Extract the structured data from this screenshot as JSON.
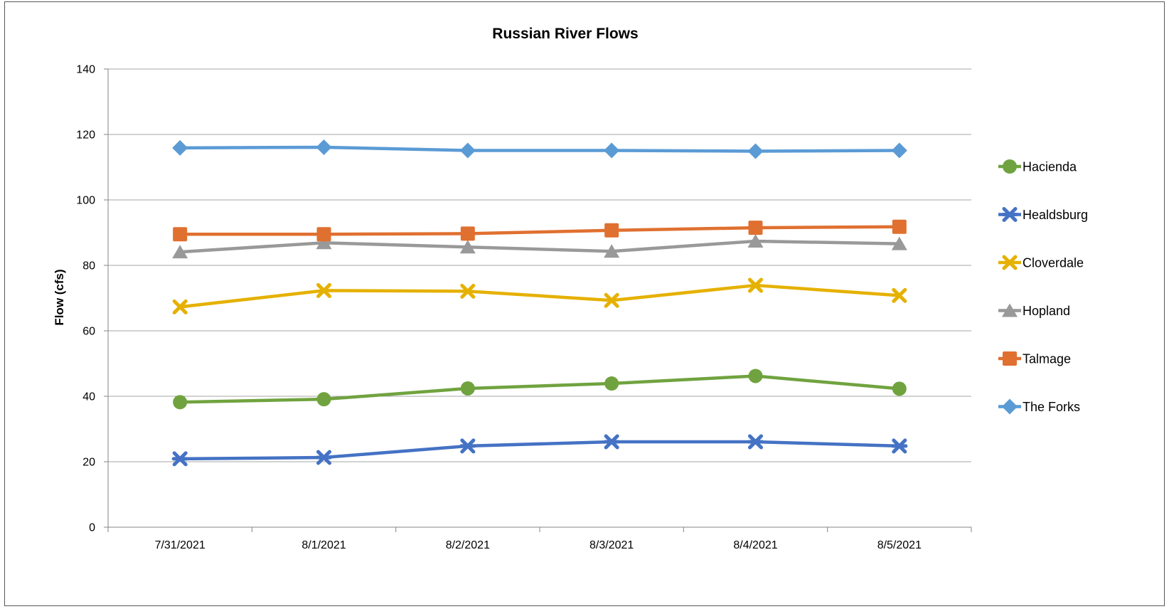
{
  "chart_data": {
    "type": "line",
    "title": "Russian River Flows",
    "xlabel": "",
    "ylabel": "Flow (cfs)",
    "categories": [
      "7/31/2021",
      "8/1/2021",
      "8/2/2021",
      "8/3/2021",
      "8/4/2021",
      "8/5/2021"
    ],
    "ylim": [
      0,
      140
    ],
    "yticks": [
      0,
      20,
      40,
      60,
      80,
      100,
      120,
      140
    ],
    "grid": true,
    "legend": "right",
    "series": [
      {
        "name": "Hacienda",
        "color": "#70A33F",
        "marker": "circle",
        "values": [
          38.2,
          39.1,
          42.4,
          43.9,
          46.2,
          42.3
        ]
      },
      {
        "name": "Healdsburg",
        "color": "#4472C4",
        "marker": "cross",
        "values": [
          20.9,
          21.3,
          24.8,
          26.1,
          26.1,
          24.8
        ]
      },
      {
        "name": "Cloverdale",
        "color": "#E5B100",
        "marker": "x",
        "values": [
          67.3,
          72.3,
          72.1,
          69.3,
          73.9,
          70.8
        ]
      },
      {
        "name": "Hopland",
        "color": "#999999",
        "marker": "triangle",
        "values": [
          84.1,
          86.9,
          85.6,
          84.3,
          87.4,
          86.6
        ]
      },
      {
        "name": "Talmage",
        "color": "#E07030",
        "marker": "square",
        "values": [
          89.5,
          89.5,
          89.7,
          90.7,
          91.5,
          91.8
        ]
      },
      {
        "name": "The Forks",
        "color": "#5B9BD5",
        "marker": "diamond",
        "values": [
          115.9,
          116.1,
          115.1,
          115.1,
          114.9,
          115.1
        ]
      }
    ]
  }
}
